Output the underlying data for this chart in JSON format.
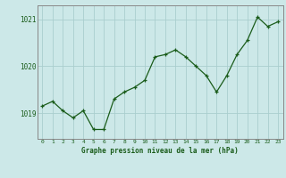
{
  "x": [
    0,
    1,
    2,
    3,
    4,
    5,
    6,
    7,
    8,
    9,
    10,
    11,
    12,
    13,
    14,
    15,
    16,
    17,
    18,
    19,
    20,
    21,
    22,
    23
  ],
  "y": [
    1019.15,
    1019.25,
    1019.05,
    1018.9,
    1019.05,
    1018.65,
    1018.65,
    1019.3,
    1019.45,
    1019.55,
    1019.7,
    1020.2,
    1020.25,
    1020.35,
    1020.2,
    1020.0,
    1019.8,
    1019.45,
    1019.8,
    1020.25,
    1020.55,
    1021.05,
    1020.85,
    1020.95
  ],
  "line_color": "#1a5c1a",
  "marker": "+",
  "marker_size": 3,
  "bg_color": "#cce8e8",
  "grid_color": "#aacece",
  "axis_label_color": "#1a5c1a",
  "tick_label_color": "#1a5c1a",
  "ylim": [
    1018.45,
    1021.3
  ],
  "yticks": [
    1019,
    1020,
    1021
  ],
  "xlabel": "Graphe pression niveau de la mer (hPa)",
  "spine_color": "#888888"
}
